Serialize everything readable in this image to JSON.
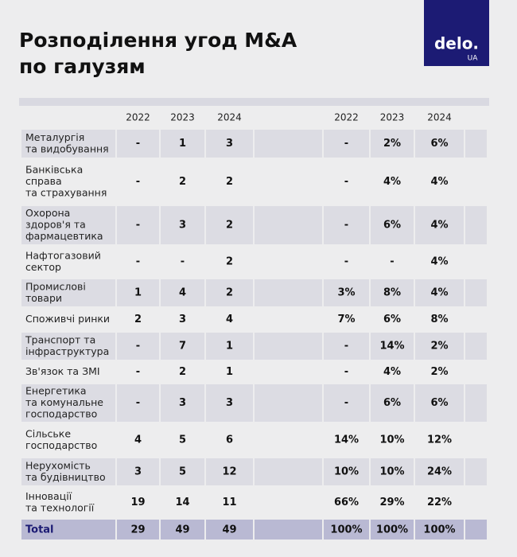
{
  "header": {
    "title": [
      "Розподілення угод M&A",
      "по галузям"
    ],
    "logo": {
      "name": "delo.",
      "suffix": "UA"
    }
  },
  "table": {
    "columns": [
      "2022",
      "2023",
      "2024",
      "2022",
      "2023",
      "2024"
    ],
    "rows": [
      {
        "label": [
          "Металургія",
          "та видобування"
        ],
        "counts": [
          "-",
          "1",
          "3"
        ],
        "shares": [
          "-",
          "2%",
          "6%"
        ]
      },
      {
        "label": [
          "Банківська",
          "справа",
          "та страхування"
        ],
        "counts": [
          "-",
          "2",
          "2"
        ],
        "shares": [
          "-",
          "4%",
          "4%"
        ]
      },
      {
        "label": [
          "Охорона",
          "здоров'я та",
          "фармацевтика"
        ],
        "counts": [
          "-",
          "3",
          "2"
        ],
        "shares": [
          "-",
          "6%",
          "4%"
        ]
      },
      {
        "label": [
          "Нафтогазовий",
          "сектор"
        ],
        "counts": [
          "-",
          "-",
          "2"
        ],
        "shares": [
          "-",
          "-",
          "4%"
        ]
      },
      {
        "label": [
          "Промислові",
          "товари"
        ],
        "counts": [
          "1",
          "4",
          "2"
        ],
        "shares": [
          "3%",
          "8%",
          "4%"
        ]
      },
      {
        "label": [
          "Споживчі ринки"
        ],
        "counts": [
          "2",
          "3",
          "4"
        ],
        "shares": [
          "7%",
          "6%",
          "8%"
        ]
      },
      {
        "label": [
          "Транспорт та",
          "інфраструктура"
        ],
        "counts": [
          "-",
          "7",
          "1"
        ],
        "shares": [
          "-",
          "14%",
          "2%"
        ]
      },
      {
        "label": [
          "Зв'язок та ЗМІ"
        ],
        "counts": [
          "-",
          "2",
          "1"
        ],
        "shares": [
          "-",
          "4%",
          "2%"
        ]
      },
      {
        "label": [
          "Енергетика",
          "та комунальне",
          "господарство"
        ],
        "counts": [
          "-",
          "3",
          "3"
        ],
        "shares": [
          "-",
          "6%",
          "6%"
        ]
      },
      {
        "label": [
          "Сільське",
          "господарство"
        ],
        "counts": [
          "4",
          "5",
          "6"
        ],
        "shares": [
          "14%",
          "10%",
          "12%"
        ]
      },
      {
        "label": [
          "Нерухомість",
          "та будівництво"
        ],
        "counts": [
          "3",
          "5",
          "12"
        ],
        "shares": [
          "10%",
          "10%",
          "24%"
        ]
      },
      {
        "label": [
          "Інновації",
          "та технології"
        ],
        "counts": [
          "19",
          "14",
          "11"
        ],
        "shares": [
          "66%",
          "29%",
          "22%"
        ]
      }
    ],
    "total": {
      "label": "Total",
      "counts": [
        "29",
        "49",
        "49"
      ],
      "shares": [
        "100%",
        "100%",
        "100%"
      ]
    }
  }
}
